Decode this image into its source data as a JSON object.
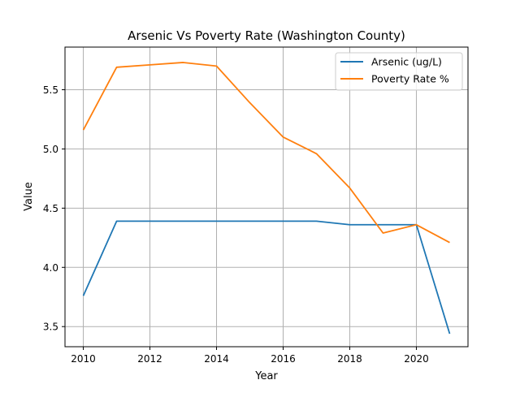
{
  "chart_data": {
    "type": "line",
    "title": "Arsenic Vs Poverty Rate (Washington County)",
    "xlabel": "Year",
    "ylabel": "Value",
    "x": [
      2010,
      2011,
      2012,
      2013,
      2014,
      2015,
      2016,
      2017,
      2018,
      2019,
      2020,
      2021
    ],
    "xlim": [
      2009.45,
      2021.55
    ],
    "ylim": [
      3.33,
      5.86
    ],
    "xticks": [
      2010,
      2012,
      2014,
      2016,
      2018,
      2020
    ],
    "yticks": [
      3.5,
      4.0,
      4.5,
      5.0,
      5.5
    ],
    "ytick_labels": [
      "3.5",
      "4.0",
      "4.5",
      "5.0",
      "5.5"
    ],
    "grid": true,
    "legend_position": "top-right",
    "series": [
      {
        "name": "Arsenic (ug/L)",
        "color": "#1f77b4",
        "values": [
          3.76,
          4.39,
          4.39,
          4.39,
          4.39,
          4.39,
          4.39,
          4.39,
          4.36,
          4.36,
          4.36,
          3.44
        ]
      },
      {
        "name": "Poverty Rate %",
        "color": "#ff7f0e",
        "values": [
          5.16,
          5.69,
          5.71,
          5.73,
          5.7,
          5.39,
          5.1,
          4.96,
          4.67,
          4.29,
          4.36,
          4.21
        ]
      }
    ]
  }
}
